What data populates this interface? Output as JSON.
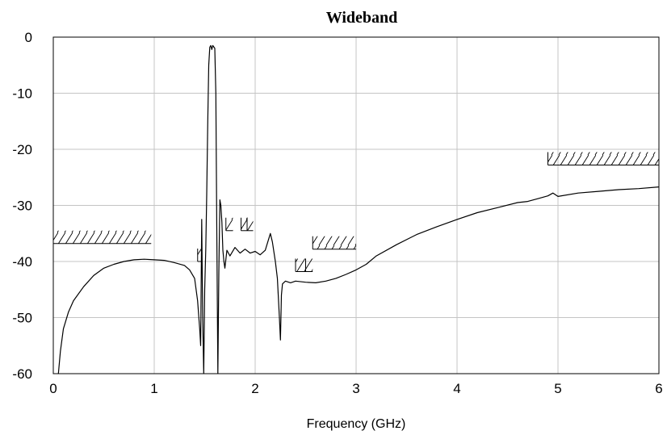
{
  "chart_data": {
    "type": "line",
    "title": "Wideband",
    "xlabel": "Frequency (GHz)",
    "ylabel": "",
    "xlim": [
      0,
      6
    ],
    "ylim": [
      -60,
      0
    ],
    "x_ticks": [
      0,
      1,
      2,
      3,
      4,
      5,
      6
    ],
    "y_ticks": [
      0,
      -10,
      -20,
      -30,
      -40,
      -50,
      -60
    ],
    "grid": true,
    "series": [
      {
        "x": [
          0.05,
          0.07,
          0.1,
          0.15,
          0.2,
          0.3,
          0.4,
          0.5,
          0.6,
          0.7,
          0.8,
          0.9,
          1.0,
          1.1,
          1.2,
          1.3,
          1.35,
          1.4,
          1.43,
          1.45,
          1.46,
          1.47,
          1.48,
          1.49,
          1.5,
          1.51,
          1.52,
          1.53,
          1.54,
          1.55,
          1.56,
          1.57,
          1.58,
          1.6,
          1.61,
          1.62,
          1.63,
          1.64,
          1.65,
          1.66,
          1.67,
          1.68,
          1.69,
          1.7,
          1.72,
          1.75,
          1.8,
          1.85,
          1.9,
          1.95,
          2.0,
          2.05,
          2.1,
          2.15,
          2.17,
          2.2,
          2.22,
          2.24,
          2.25,
          2.26,
          2.27,
          2.3,
          2.35,
          2.4,
          2.5,
          2.6,
          2.7,
          2.8,
          2.9,
          3.0,
          3.1,
          3.2,
          3.4,
          3.6,
          3.8,
          4.0,
          4.2,
          4.4,
          4.6,
          4.7,
          4.8,
          4.9,
          4.95,
          5.0,
          5.2,
          5.4,
          5.6,
          5.8,
          6.0
        ],
        "y": [
          -60,
          -56,
          -52,
          -49,
          -47,
          -44.5,
          -42.5,
          -41.2,
          -40.5,
          -40,
          -39.7,
          -39.6,
          -39.7,
          -39.8,
          -40.2,
          -40.7,
          -41.5,
          -43,
          -47,
          -52,
          -55,
          -32.5,
          -50,
          -60,
          -45,
          -38,
          -28,
          -15,
          -5,
          -1.8,
          -1.5,
          -2.2,
          -1.5,
          -2,
          -10,
          -35,
          -60,
          -42,
          -29,
          -30,
          -33,
          -38,
          -40,
          -41.2,
          -38,
          -39,
          -37.5,
          -38.5,
          -37.8,
          -38.5,
          -38.2,
          -38.8,
          -38,
          -35,
          -36.5,
          -40,
          -43,
          -50,
          -54,
          -46,
          -44,
          -43.5,
          -43.8,
          -43.5,
          -43.7,
          -43.8,
          -43.5,
          -43,
          -42.3,
          -41.5,
          -40.5,
          -39,
          -37,
          -35.2,
          -33.8,
          -32.5,
          -31.3,
          -30.4,
          -29.5,
          -29.3,
          -28.8,
          -28.3,
          -27.8,
          -28.4,
          -27.8,
          -27.5,
          -27.2,
          -27,
          -26.7
        ]
      }
    ],
    "mask_segments": [
      {
        "x": [
          0.0,
          0.97
        ],
        "y": -36.8
      },
      {
        "x": [
          1.43,
          1.47
        ],
        "y": -40
      },
      {
        "x": [
          1.71,
          1.78
        ],
        "y": -34.5
      },
      {
        "x": [
          1.86,
          1.92
        ],
        "y": -34.5
      },
      {
        "x": [
          1.92,
          1.98
        ],
        "y": -34.5
      },
      {
        "x": [
          2.4,
          2.5
        ],
        "y": -41.8
      },
      {
        "x": [
          2.5,
          2.57
        ],
        "y": -41.8
      },
      {
        "x": [
          2.57,
          3.0
        ],
        "y": -37.8
      },
      {
        "x": [
          4.9,
          6.0
        ],
        "y": -22.8
      }
    ]
  }
}
